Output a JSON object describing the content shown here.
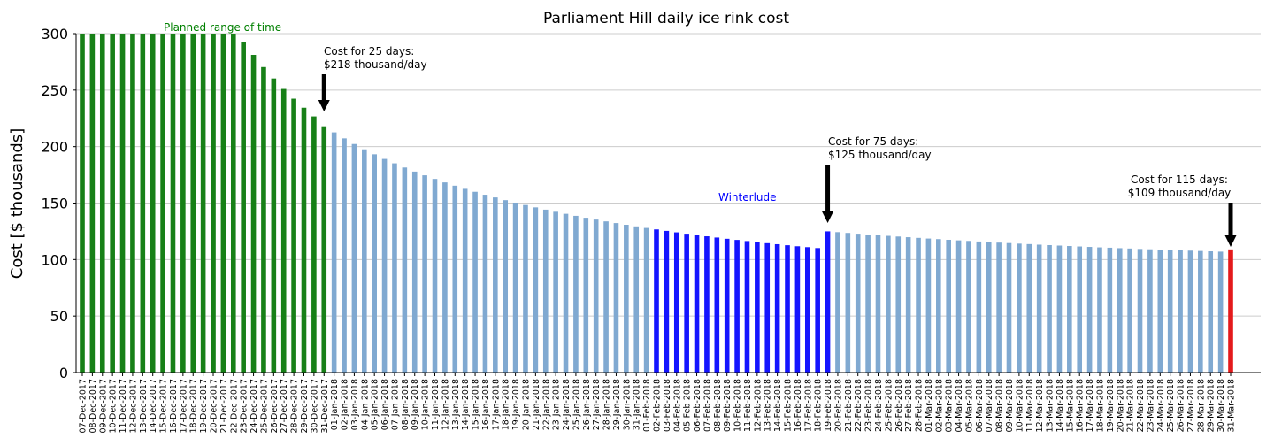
{
  "chart_data": {
    "type": "bar",
    "title": "Parliament Hill daily ice rink cost",
    "ylabel": "Cost [$ thousands]",
    "xlabel": "",
    "ylim": [
      0,
      300
    ],
    "yticks": [
      0,
      50,
      100,
      150,
      200,
      250,
      300
    ],
    "grid": "horizontal",
    "start_date": "2017-12-07",
    "categories": [
      "07-Dec-2017",
      "08-Dec-2017",
      "09-Dec-2017",
      "10-Dec-2017",
      "11-Dec-2017",
      "12-Dec-2017",
      "13-Dec-2017",
      "14-Dec-2017",
      "15-Dec-2017",
      "16-Dec-2017",
      "17-Dec-2017",
      "18-Dec-2017",
      "19-Dec-2017",
      "20-Dec-2017",
      "21-Dec-2017",
      "22-Dec-2017",
      "23-Dec-2017",
      "24-Dec-2017",
      "25-Dec-2017",
      "26-Dec-2017",
      "27-Dec-2017",
      "28-Dec-2017",
      "29-Dec-2017",
      "30-Dec-2017",
      "31-Dec-2017",
      "01-Jan-2018",
      "02-Jan-2018",
      "03-Jan-2018",
      "04-Jan-2018",
      "05-Jan-2018",
      "06-Jan-2018",
      "07-Jan-2018",
      "08-Jan-2018",
      "09-Jan-2018",
      "10-Jan-2018",
      "11-Jan-2018",
      "12-Jan-2018",
      "13-Jan-2018",
      "14-Jan-2018",
      "15-Jan-2018",
      "16-Jan-2018",
      "17-Jan-2018",
      "18-Jan-2018",
      "19-Jan-2018",
      "20-Jan-2018",
      "21-Jan-2018",
      "22-Jan-2018",
      "23-Jan-2018",
      "24-Jan-2018",
      "25-Jan-2018",
      "26-Jan-2018",
      "27-Jan-2018",
      "28-Jan-2018",
      "29-Jan-2018",
      "30-Jan-2018",
      "31-Jan-2018",
      "01-Feb-2018",
      "02-Feb-2018",
      "03-Feb-2018",
      "04-Feb-2018",
      "05-Feb-2018",
      "06-Feb-2018",
      "07-Feb-2018",
      "08-Feb-2018",
      "09-Feb-2018",
      "10-Feb-2018",
      "11-Feb-2018",
      "12-Feb-2018",
      "13-Feb-2018",
      "14-Feb-2018",
      "15-Feb-2018",
      "16-Feb-2018",
      "17-Feb-2018",
      "18-Feb-2018",
      "19-Feb-2018",
      "20-Feb-2018",
      "21-Feb-2018",
      "22-Feb-2018",
      "23-Feb-2018",
      "24-Feb-2018",
      "25-Feb-2018",
      "26-Feb-2018",
      "27-Feb-2018",
      "28-Feb-2018",
      "01-Mar-2018",
      "02-Mar-2018",
      "03-Mar-2018",
      "04-Mar-2018",
      "05-Mar-2018",
      "06-Mar-2018",
      "07-Mar-2018",
      "08-Mar-2018",
      "09-Mar-2018",
      "10-Mar-2018",
      "11-Mar-2018",
      "12-Mar-2018",
      "13-Mar-2018",
      "14-Mar-2018",
      "15-Mar-2018",
      "16-Mar-2018",
      "17-Mar-2018",
      "18-Mar-2018",
      "19-Mar-2018",
      "20-Mar-2018",
      "21-Mar-2018",
      "22-Mar-2018",
      "23-Mar-2018",
      "24-Mar-2018",
      "25-Mar-2018",
      "26-Mar-2018",
      "27-Mar-2018",
      "28-Mar-2018",
      "29-Mar-2018",
      "30-Mar-2018",
      "31-Mar-2018"
    ],
    "values": [
      300,
      300,
      300,
      300,
      300,
      300,
      300,
      300,
      300,
      300,
      300,
      300,
      300,
      300,
      300,
      300,
      292.7,
      281.2,
      270.4,
      260.3,
      251,
      242.4,
      234.4,
      226.7,
      218,
      212.6,
      207.3,
      202.3,
      197.6,
      193.2,
      189.1,
      185.2,
      181.5,
      177.9,
      174.6,
      171.4,
      168.3,
      165.4,
      162.6,
      160,
      157.4,
      155,
      152.6,
      150.4,
      148.3,
      146.2,
      144.2,
      142.3,
      140.5,
      138.7,
      137,
      135.4,
      133.8,
      132.3,
      130.8,
      129.4,
      128,
      126.7,
      125.4,
      124.1,
      122.9,
      121.7,
      120.6,
      119.5,
      118.4,
      117.4,
      116.4,
      115.4,
      114.5,
      113.6,
      112.7,
      111.8,
      111,
      110.2,
      125,
      124.3,
      123.6,
      122.9,
      122.2,
      121.6,
      121,
      120.4,
      119.8,
      119.2,
      118.6,
      118.1,
      117.5,
      117,
      116.5,
      116,
      115.5,
      115,
      114.6,
      114.1,
      113.7,
      113.2,
      112.8,
      112.4,
      112,
      111.6,
      111.2,
      110.8,
      110.5,
      110.1,
      109.8,
      109.4,
      109.1,
      108.8,
      108.5,
      108.2,
      107.9,
      107.6,
      107.3,
      107,
      109
    ],
    "colors": {
      "planned": "#178017",
      "default": "#80a9d1",
      "winterlude": "#1414ff",
      "final": "#e41a1c"
    },
    "regions": {
      "planned_label": "Planned range of time",
      "winterlude_label": "Winterlude"
    },
    "annotations": [
      {
        "line1": "Cost for 25 days:",
        "line2": "$218 thousand/day",
        "category": "31-Dec-2017"
      },
      {
        "line1": "Cost for 75 days:",
        "line2": "$125 thousand/day",
        "category": "19-Feb-2018"
      },
      {
        "line1": "Cost for 115 days:",
        "line2": "$109 thousand/day",
        "category": "31-Mar-2018"
      }
    ]
  }
}
